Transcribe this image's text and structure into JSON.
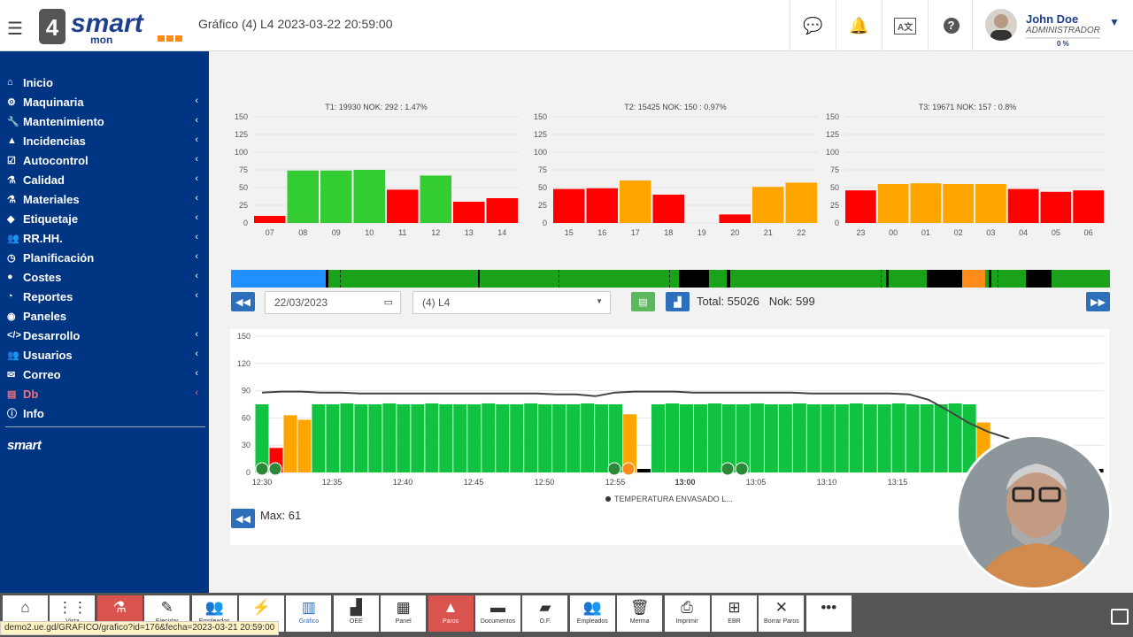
{
  "header": {
    "menu_icon": "hamburger-icon",
    "logo_text": "smart",
    "logo_sub": "mon",
    "logo_num": "4",
    "title": "Gráfico (4) L4 2023-03-22 20:59:00",
    "icons": [
      "chat-icon",
      "bell-icon",
      "language-icon",
      "help-icon"
    ],
    "user": {
      "name": "John Doe",
      "role": "ADMINISTRADOR",
      "progress": "0 %"
    }
  },
  "sidebar": {
    "items": [
      {
        "label": "Inicio",
        "icon": "home-icon",
        "arrow": false
      },
      {
        "label": "Maquinaria",
        "icon": "cogs-icon",
        "arrow": true
      },
      {
        "label": "Mantenimiento",
        "icon": "wrench-icon",
        "arrow": true
      },
      {
        "label": "Incidencias",
        "icon": "warning-icon",
        "arrow": true
      },
      {
        "label": "Autocontrol",
        "icon": "checkbox-icon",
        "arrow": true
      },
      {
        "label": "Calidad",
        "icon": "flask-icon",
        "arrow": true
      },
      {
        "label": "Materiales",
        "icon": "flask-icon",
        "arrow": true
      },
      {
        "label": "Etiquetaje",
        "icon": "tag-icon",
        "arrow": true
      },
      {
        "label": "RR.HH.",
        "icon": "users-icon",
        "arrow": true
      },
      {
        "label": "Planificación",
        "icon": "clock-icon",
        "arrow": true
      },
      {
        "label": "Costes",
        "icon": "coin-icon",
        "arrow": true
      },
      {
        "label": "Reportes",
        "icon": "chart-pie-icon",
        "arrow": true
      },
      {
        "label": "Paneles",
        "icon": "dashboard-icon",
        "arrow": false
      },
      {
        "label": "Desarrollo",
        "icon": "code-icon",
        "arrow": true
      },
      {
        "label": "Usuarios",
        "icon": "users-icon",
        "arrow": true
      },
      {
        "label": "Correo",
        "icon": "envelope-icon",
        "arrow": true
      },
      {
        "label": "Db",
        "icon": "database-icon",
        "arrow": true
      },
      {
        "label": "Info",
        "icon": "info-icon",
        "arrow": false
      }
    ],
    "footer_logo": "smart"
  },
  "controls": {
    "date": "22/03/2023",
    "line_select": "(4) L4",
    "total": "Total: 55026",
    "nok": "Nok: 599",
    "max": "Max: 61"
  },
  "timeline": {
    "colors": {
      "blue": "#1e90ff",
      "green": "#1aa31a",
      "black": "#000000",
      "orange": "#ff8c1a"
    }
  },
  "bottombar": [
    {
      "label": "",
      "icon": "home-icon"
    },
    {
      "label": "Vista",
      "icon": "grid-icon"
    },
    {
      "label": "",
      "icon": "flask-icon",
      "style": "red"
    },
    {
      "label": "Ejecutar",
      "icon": "magic-icon"
    },
    {
      "label": "Empleados",
      "icon": "users-icon"
    },
    {
      "label": "",
      "icon": "bolt-icon"
    },
    {
      "label": "Gráfico",
      "icon": "bar-chart-icon",
      "style": "active"
    },
    {
      "label": "OEE",
      "icon": "signal-icon"
    },
    {
      "label": "Panel",
      "icon": "file-chart-icon"
    },
    {
      "label": "Paros",
      "icon": "warning-icon",
      "style": "red"
    },
    {
      "label": "Documentos",
      "icon": "book-icon"
    },
    {
      "label": "O.F.",
      "icon": "folder-icon"
    },
    {
      "label": "Empleados",
      "icon": "users-icon"
    },
    {
      "label": "Merma",
      "icon": "trash-icon"
    },
    {
      "label": "Imprimir",
      "icon": "print-icon"
    },
    {
      "label": "EBR",
      "icon": "sitemap-icon"
    },
    {
      "label": "Borrar Paros",
      "icon": "eraser-icon"
    },
    {
      "label": "",
      "icon": "ellipsis-icon"
    }
  ],
  "status_url": "demo2.ue.gd/GRAFICO/grafico?id=176&fecha=2023-03-21 20:59:00",
  "chart_data": [
    {
      "type": "bar",
      "title": "T1: 19930 NOK: 292 : 1.47%",
      "categories": [
        "07",
        "08",
        "09",
        "10",
        "11",
        "12",
        "13",
        "14"
      ],
      "values": [
        10,
        74,
        74,
        75,
        47,
        67,
        30,
        35
      ],
      "colors": [
        "#ff0000",
        "#33cc33",
        "#33cc33",
        "#33cc33",
        "#ff0000",
        "#33cc33",
        "#ff0000",
        "#ff0000"
      ],
      "ylim": [
        0,
        150
      ],
      "yticks": [
        0,
        25,
        50,
        75,
        100,
        125,
        150
      ]
    },
    {
      "type": "bar",
      "title": "T2: 15425 NOK: 150 : 0.97%",
      "categories": [
        "15",
        "16",
        "17",
        "18",
        "19",
        "20",
        "21",
        "22"
      ],
      "values": [
        48,
        49,
        60,
        40,
        0,
        12,
        51,
        57
      ],
      "colors": [
        "#ff0000",
        "#ff0000",
        "#ffa500",
        "#ff0000",
        "#ff0000",
        "#ff0000",
        "#ffa500",
        "#ffa500"
      ],
      "ylim": [
        0,
        150
      ],
      "yticks": [
        0,
        25,
        50,
        75,
        100,
        125,
        150
      ]
    },
    {
      "type": "bar",
      "title": "T3: 19671 NOK: 157 : 0.8%",
      "categories": [
        "23",
        "00",
        "01",
        "02",
        "03",
        "04",
        "05",
        "06"
      ],
      "values": [
        46,
        55,
        56,
        55,
        55,
        48,
        44,
        46
      ],
      "colors": [
        "#ff0000",
        "#ffa500",
        "#ffa500",
        "#ffa500",
        "#ffa500",
        "#ff0000",
        "#ff0000",
        "#ff0000"
      ],
      "ylim": [
        0,
        150
      ],
      "yticks": [
        0,
        25,
        50,
        75,
        100,
        125,
        150
      ]
    },
    {
      "type": "bar",
      "ylim": [
        0,
        150
      ],
      "yticks": [
        0,
        30,
        60,
        90,
        120,
        150
      ],
      "xticks": [
        "12:30",
        "12:35",
        "12:40",
        "12:45",
        "12:50",
        "12:55",
        "13:00",
        "13:05",
        "13:10",
        "13:15",
        "1"
      ],
      "line_series": {
        "name": "TEMPERATURA ENVASADO L..."
      },
      "bars": [
        {
          "v": 75,
          "c": "#11c241"
        },
        {
          "v": 27,
          "c": "#ff0000"
        },
        {
          "v": 63,
          "c": "#ffa500"
        },
        {
          "v": 58,
          "c": "#ffa500"
        },
        {
          "v": 75,
          "c": "#11c241"
        },
        {
          "v": 75,
          "c": "#11c241"
        },
        {
          "v": 76,
          "c": "#11c241"
        },
        {
          "v": 75,
          "c": "#11c241"
        },
        {
          "v": 75,
          "c": "#11c241"
        },
        {
          "v": 76,
          "c": "#11c241"
        },
        {
          "v": 75,
          "c": "#11c241"
        },
        {
          "v": 75,
          "c": "#11c241"
        },
        {
          "v": 76,
          "c": "#11c241"
        },
        {
          "v": 75,
          "c": "#11c241"
        },
        {
          "v": 75,
          "c": "#11c241"
        },
        {
          "v": 75,
          "c": "#11c241"
        },
        {
          "v": 76,
          "c": "#11c241"
        },
        {
          "v": 75,
          "c": "#11c241"
        },
        {
          "v": 75,
          "c": "#11c241"
        },
        {
          "v": 76,
          "c": "#11c241"
        },
        {
          "v": 75,
          "c": "#11c241"
        },
        {
          "v": 75,
          "c": "#11c241"
        },
        {
          "v": 75,
          "c": "#11c241"
        },
        {
          "v": 76,
          "c": "#11c241"
        },
        {
          "v": 75,
          "c": "#11c241"
        },
        {
          "v": 75,
          "c": "#11c241"
        },
        {
          "v": 64,
          "c": "#ffa500"
        },
        {
          "v": 0,
          "c": "#000"
        },
        {
          "v": 75,
          "c": "#11c241"
        },
        {
          "v": 76,
          "c": "#11c241"
        },
        {
          "v": 75,
          "c": "#11c241"
        },
        {
          "v": 75,
          "c": "#11c241"
        },
        {
          "v": 76,
          "c": "#11c241"
        },
        {
          "v": 75,
          "c": "#11c241"
        },
        {
          "v": 75,
          "c": "#11c241"
        },
        {
          "v": 76,
          "c": "#11c241"
        },
        {
          "v": 75,
          "c": "#11c241"
        },
        {
          "v": 75,
          "c": "#11c241"
        },
        {
          "v": 76,
          "c": "#11c241"
        },
        {
          "v": 75,
          "c": "#11c241"
        },
        {
          "v": 75,
          "c": "#11c241"
        },
        {
          "v": 75,
          "c": "#11c241"
        },
        {
          "v": 76,
          "c": "#11c241"
        },
        {
          "v": 75,
          "c": "#11c241"
        },
        {
          "v": 75,
          "c": "#11c241"
        },
        {
          "v": 76,
          "c": "#11c241"
        },
        {
          "v": 75,
          "c": "#11c241"
        },
        {
          "v": 75,
          "c": "#11c241"
        },
        {
          "v": 75,
          "c": "#11c241"
        },
        {
          "v": 76,
          "c": "#11c241"
        },
        {
          "v": 75,
          "c": "#11c241"
        },
        {
          "v": 55,
          "c": "#ffa500"
        },
        {
          "v": 0,
          "c": "#000"
        },
        {
          "v": 0,
          "c": "#000"
        },
        {
          "v": 0,
          "c": "#000"
        },
        {
          "v": 0,
          "c": "#000"
        },
        {
          "v": 0,
          "c": "#000"
        },
        {
          "v": 0,
          "c": "#000"
        },
        {
          "v": 0,
          "c": "#000"
        },
        {
          "v": 0,
          "c": "#000"
        }
      ],
      "line": [
        88,
        89,
        89,
        88,
        88,
        87,
        87,
        87,
        87,
        87,
        87,
        87,
        87,
        87,
        87,
        86,
        86,
        84,
        88,
        89,
        89,
        89,
        88,
        88,
        88,
        88,
        88,
        88,
        87,
        87,
        87,
        87,
        87,
        86,
        80,
        68,
        55,
        45,
        38,
        30
      ]
    }
  ]
}
